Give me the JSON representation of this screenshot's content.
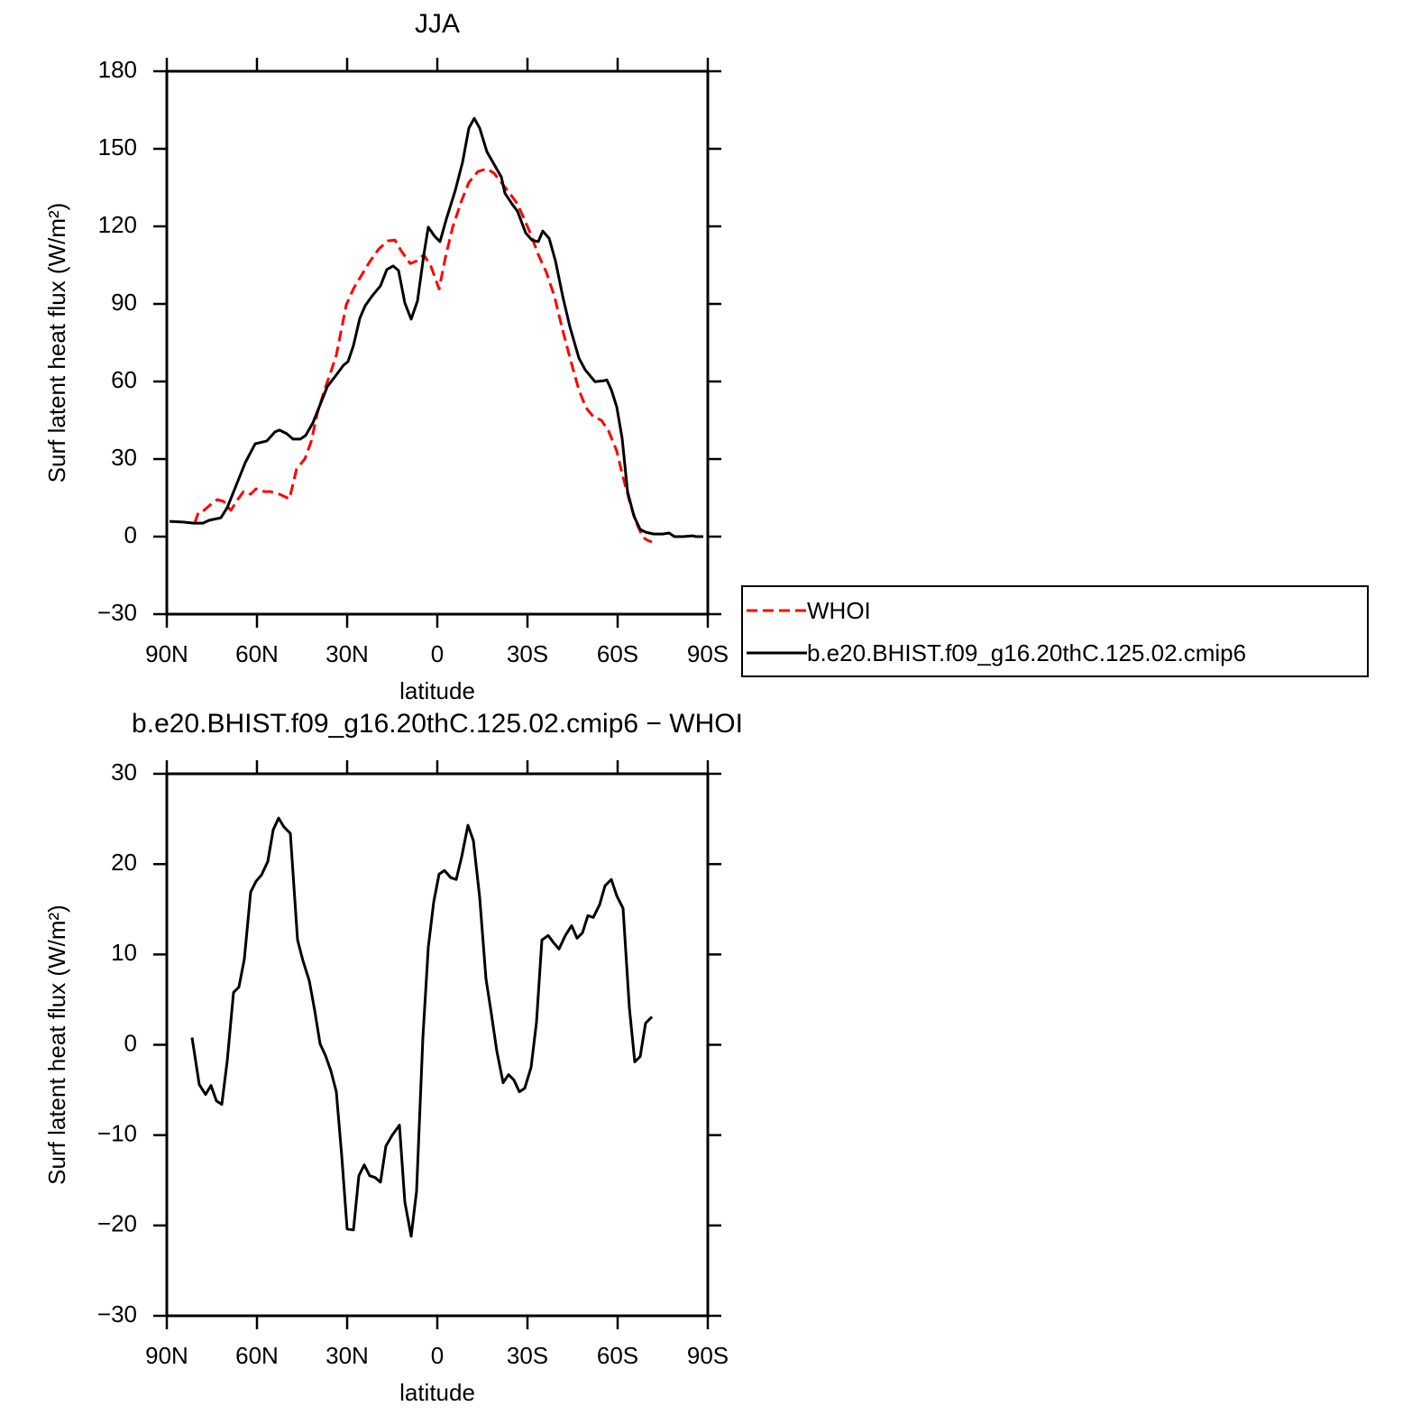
{
  "chart_data": [
    {
      "type": "line",
      "title": "JJA",
      "x_label": "latitude",
      "y_label": "Surf latent heat flux (W/m²)",
      "xlim": [
        90,
        -90
      ],
      "xticks": [
        {
          "value": 90,
          "label": "90N"
        },
        {
          "value": 60,
          "label": "60N"
        },
        {
          "value": 30,
          "label": "30N"
        },
        0,
        {
          "value": -30,
          "label": "30S"
        },
        {
          "value": -60,
          "label": "60S"
        },
        {
          "value": -90,
          "label": "90S"
        }
      ],
      "ylim": [
        -30,
        180
      ],
      "yticks": [
        {
          "value": -30,
          "label": "−30"
        },
        0,
        30,
        60,
        90,
        120,
        150,
        180
      ],
      "legend": "right",
      "series": [
        {
          "name": "WHOI",
          "color": "#ff0000",
          "dash": true,
          "x": [
            80.7,
            79.5,
            77.7,
            75.6,
            73.2,
            71.1,
            68.7,
            66.6,
            64.5,
            62.1,
            60.3,
            57.6,
            55.5,
            52.5,
            49.2,
            46.8,
            44.1,
            42.0,
            39.9,
            37.5,
            35.4,
            33.6,
            30.3,
            27.9,
            25.2,
            22.5,
            19.5,
            16.5,
            14.1,
            12.0,
            9.0,
            6.9,
            4.5,
            2.1,
            -0.6,
            -2.7,
            -5.1,
            -8.1,
            -10.5,
            -13.5,
            -16.5,
            -18.9,
            -21.3,
            -24.3,
            -26.7,
            -28.8,
            -30.9,
            -33.6,
            -36.3,
            -39.0,
            -41.7,
            -44.4,
            -47.1,
            -49.5,
            -51.9,
            -54.6,
            -57.0,
            -59.7,
            -61.5,
            -64.2,
            -66.3,
            -68.4,
            -69.9,
            -71.4
          ],
          "values": [
            5.2,
            9.4,
            10.1,
            12.2,
            14.3,
            13.6,
            10.1,
            14.0,
            17.4,
            16.4,
            18.5,
            17.4,
            17.4,
            16.4,
            14.6,
            26.2,
            30.0,
            36.6,
            47.8,
            56.8,
            63.8,
            70.1,
            89.6,
            95.9,
            101.1,
            106.3,
            111.2,
            114.4,
            114.7,
            110.5,
            105.6,
            106.6,
            109.0,
            104.5,
            95.8,
            108.0,
            119.6,
            130.0,
            137.0,
            141.2,
            142.3,
            140.5,
            137.0,
            132.5,
            128.6,
            123.1,
            117.5,
            109.1,
            102.2,
            92.8,
            79.9,
            68.0,
            56.8,
            49.8,
            46.4,
            45.0,
            40.8,
            33.1,
            24.4,
            12.6,
            5.2,
            -0.3,
            -1.4,
            -2.1
          ]
        },
        {
          "name": "b.e20.BHIST.f09_g16.20thC.125.02.cmip6",
          "color": "#000000",
          "dash": false,
          "x": [
            89.1,
            84.6,
            81.0,
            78.0,
            75.9,
            72.0,
            69.9,
            66.9,
            63.9,
            60.6,
            56.7,
            54.0,
            52.5,
            50.1,
            48.0,
            45.6,
            43.8,
            41.4,
            39.0,
            36.6,
            33.9,
            31.2,
            29.7,
            27.9,
            25.8,
            24.0,
            21.6,
            18.9,
            16.8,
            14.7,
            12.9,
            10.8,
            8.7,
            6.6,
            4.5,
            3.0,
            0.9,
            -0.9,
            -3.0,
            -6.0,
            -8.4,
            -10.5,
            -12.3,
            -14.1,
            -16.5,
            -18.9,
            -21.3,
            -22.5,
            -24.9,
            -26.7,
            -29.4,
            -31.5,
            -33.6,
            -35.1,
            -37.2,
            -39.3,
            -41.7,
            -44.1,
            -47.1,
            -49.2,
            -52.5,
            -55.5,
            -56.4,
            -57.9,
            -59.7,
            -61.5,
            -63.3,
            -65.4,
            -67.5,
            -69.3,
            -72.0,
            -75.0,
            -77.1,
            -78.9,
            -81.9,
            -84.9,
            -86.1,
            -88.5
          ],
          "values": [
            5.9,
            5.6,
            5.2,
            5.2,
            6.3,
            7.3,
            11.2,
            19.9,
            28.6,
            35.9,
            37.0,
            40.5,
            41.2,
            39.8,
            37.7,
            37.7,
            39.1,
            44.0,
            51.0,
            58.0,
            62.1,
            66.3,
            67.7,
            73.9,
            84.4,
            89.3,
            93.2,
            97.0,
            103.3,
            104.7,
            102.9,
            90.4,
            84.1,
            91.1,
            108.9,
            119.7,
            116.2,
            114.1,
            122.8,
            134.0,
            144.8,
            158.0,
            161.8,
            158.0,
            148.9,
            144.0,
            139.1,
            132.8,
            128.6,
            125.8,
            117.5,
            114.7,
            114.1,
            118.2,
            115.4,
            106.7,
            93.1,
            81.2,
            69.1,
            64.5,
            59.9,
            60.3,
            60.6,
            56.8,
            50.2,
            38.0,
            17.4,
            8.0,
            2.8,
            1.7,
            1.0,
            1.0,
            1.4,
            0,
            0,
            0.3,
            0,
            0
          ]
        }
      ]
    },
    {
      "type": "line",
      "title": "b.e20.BHIST.f09_g16.20thC.125.02.cmip6 − WHOI",
      "x_label": "latitude",
      "y_label": "Surf latent heat flux (W/m²)",
      "xlim": [
        90,
        -90
      ],
      "xticks": [
        {
          "value": 90,
          "label": "90N"
        },
        {
          "value": 60,
          "label": "60N"
        },
        {
          "value": 30,
          "label": "30N"
        },
        0,
        {
          "value": -30,
          "label": "30S"
        },
        {
          "value": -60,
          "label": "60S"
        },
        {
          "value": -90,
          "label": "90S"
        }
      ],
      "ylim": [
        -30,
        30
      ],
      "yticks": [
        {
          "value": -30,
          "label": "−30"
        },
        {
          "value": -20,
          "label": "−20"
        },
        {
          "value": -10,
          "label": "−10"
        },
        0,
        10,
        20,
        30
      ],
      "series": [
        {
          "color": "#000000",
          "dash": false,
          "x": [
            81.6,
            79.2,
            77.1,
            75.3,
            73.5,
            71.7,
            69.9,
            67.8,
            66.0,
            64.2,
            62.1,
            60.3,
            58.5,
            56.4,
            54.6,
            52.8,
            51.0,
            48.9,
            46.5,
            44.7,
            42.6,
            40.8,
            39.0,
            37.2,
            35.4,
            33.6,
            31.8,
            30.0,
            27.9,
            26.1,
            24.3,
            22.5,
            20.7,
            18.9,
            17.1,
            15.0,
            12.6,
            10.8,
            8.7,
            6.9,
            4.8,
            3.0,
            1.2,
            -0.6,
            -2.4,
            -4.5,
            -6.3,
            -8.1,
            -10.2,
            -12.0,
            -14.1,
            -16.2,
            -18.0,
            -19.8,
            -21.9,
            -23.7,
            -25.5,
            -27.3,
            -29.1,
            -31.2,
            -33.0,
            -34.8,
            -36.9,
            -38.7,
            -40.5,
            -42.6,
            -44.7,
            -46.5,
            -48.3,
            -50.1,
            -51.9,
            -54.0,
            -55.8,
            -57.9,
            -59.7,
            -61.8,
            -63.9,
            -65.7,
            -67.5,
            -69.3,
            -71.4
          ],
          "values": [
            0.8,
            -4.4,
            -5.5,
            -4.5,
            -6.2,
            -6.6,
            -1.8,
            5.8,
            6.4,
            9.5,
            16.9,
            18.1,
            18.8,
            20.3,
            23.8,
            25.1,
            24.1,
            23.4,
            11.6,
            9.3,
            7.1,
            3.8,
            0.1,
            -1.2,
            -2.9,
            -5.2,
            -12.3,
            -20.4,
            -20.5,
            -14.5,
            -13.3,
            -14.5,
            -14.7,
            -15.2,
            -11.2,
            -10.0,
            -8.9,
            -17.4,
            -21.2,
            -16.2,
            0.8,
            10.8,
            15.8,
            18.9,
            19.3,
            18.5,
            18.3,
            20.8,
            24.3,
            22.6,
            16.3,
            7.3,
            3.4,
            -0.7,
            -4.2,
            -3.3,
            -3.9,
            -5.2,
            -4.8,
            -2.5,
            2.5,
            11.6,
            12.1,
            11.3,
            10.6,
            12.1,
            13.2,
            11.8,
            12.4,
            14.3,
            14.1,
            15.5,
            17.6,
            18.3,
            16.5,
            15.1,
            4.1,
            -1.9,
            -1.3,
            2.4,
            3.1
          ]
        }
      ]
    }
  ]
}
